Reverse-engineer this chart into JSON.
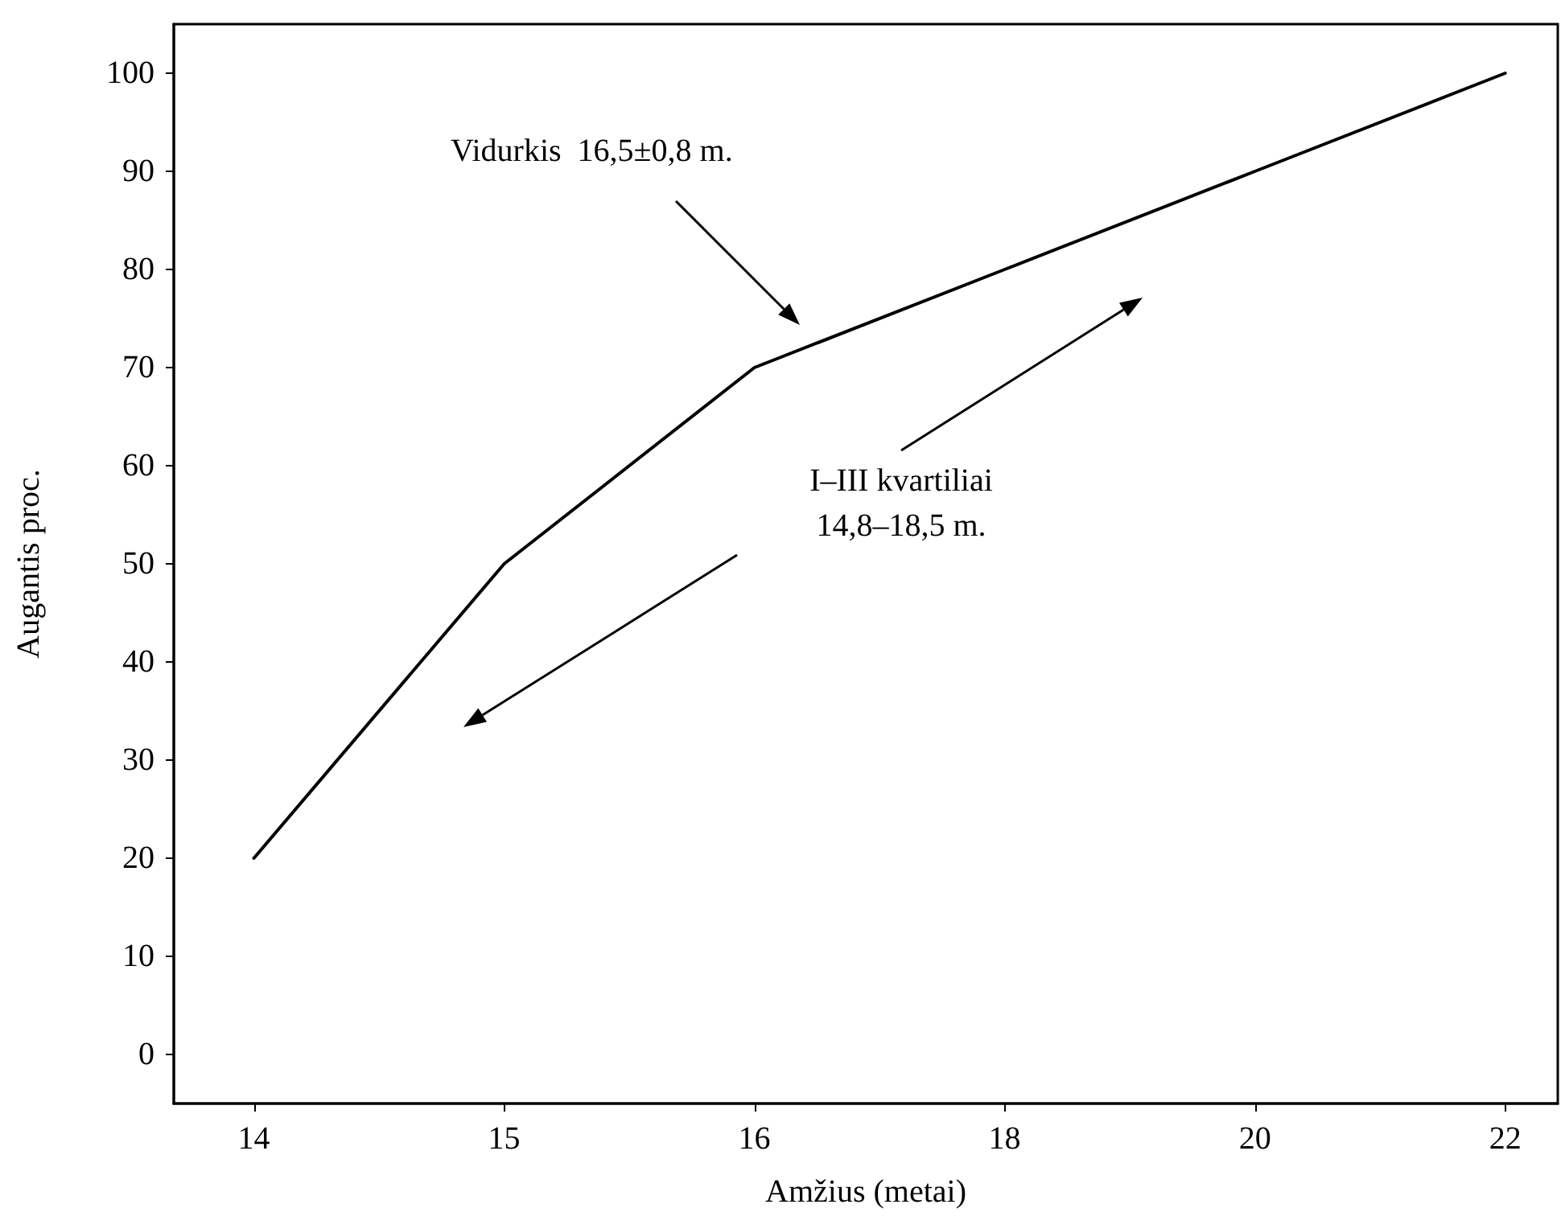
{
  "chart_data": {
    "type": "line",
    "xlabel": "Amžius (metai)",
    "ylabel": "Augantis proc.",
    "categories": [
      "14",
      "15",
      "16",
      "18",
      "20",
      "22"
    ],
    "series": [
      {
        "color": "#000000",
        "values": [
          20,
          50,
          70,
          80,
          90,
          100
        ]
      }
    ],
    "ylim": [
      -5,
      105
    ],
    "yticks": [
      0,
      10,
      20,
      30,
      40,
      50,
      60,
      70,
      80,
      90,
      100
    ],
    "marker": "none",
    "grid": false,
    "annotations": [
      "Vidurkis  16,5±0,8 m.",
      "I–III kvartiliai\n14,8–18,5 m."
    ]
  }
}
